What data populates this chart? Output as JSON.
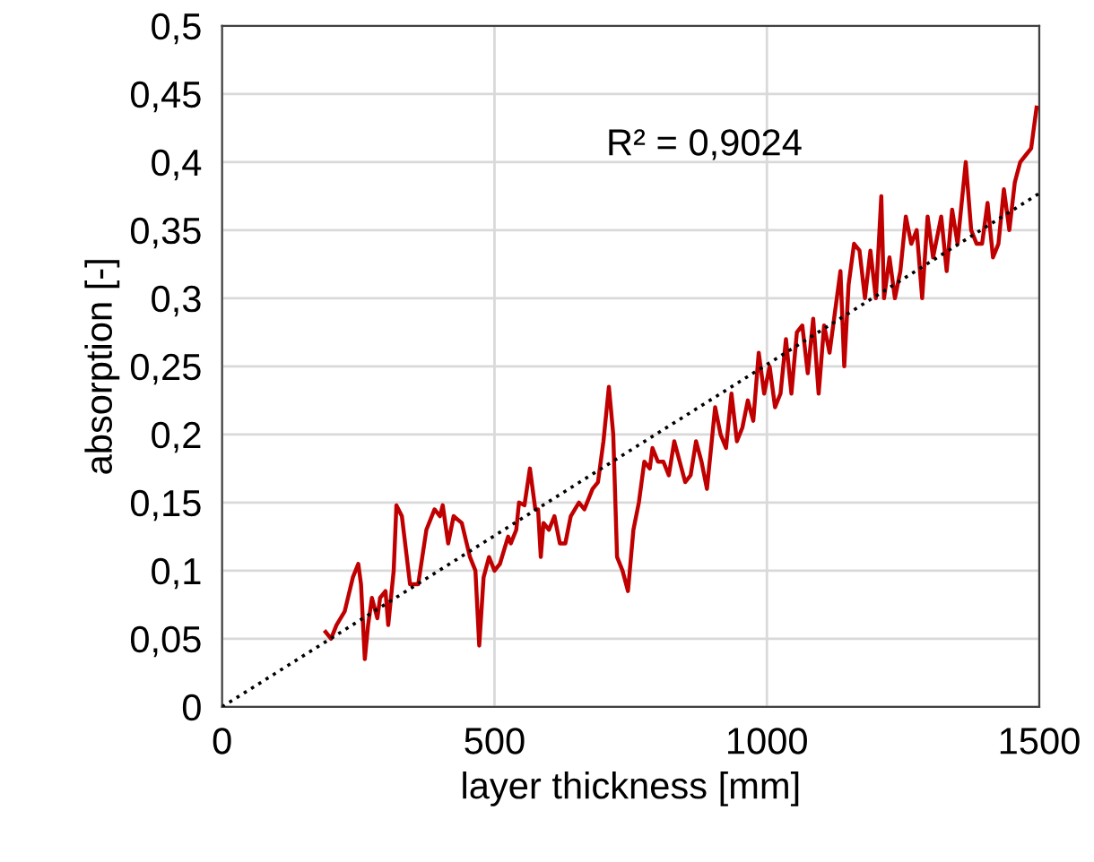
{
  "chart_data": {
    "type": "line",
    "xlabel": "layer thickness [mm]",
    "ylabel": "absorption [-]",
    "xlim": [
      0,
      1500
    ],
    "ylim": [
      0,
      0.5
    ],
    "xticks": [
      0,
      500,
      1000,
      1500
    ],
    "yticks": [
      0,
      {
        "value": 0.05,
        "label": "0,05"
      },
      {
        "value": 0.1,
        "label": "0,1"
      },
      {
        "value": 0.15,
        "label": "0,15"
      },
      {
        "value": 0.2,
        "label": "0,2"
      },
      {
        "value": 0.25,
        "label": "0,25"
      },
      {
        "value": 0.3,
        "label": "0,3"
      },
      {
        "value": 0.35,
        "label": "0,35"
      },
      {
        "value": 0.4,
        "label": "0,4"
      },
      {
        "value": 0.45,
        "label": "0,45"
      },
      {
        "value": 0.5,
        "label": "0,5"
      }
    ],
    "grid": true,
    "legend": false,
    "annotations": [
      "R² = 0,9024"
    ],
    "series": [
      {
        "color": "#c00000",
        "line_style": "solid",
        "x": [
          190,
          200,
          210,
          225,
          240,
          250,
          255,
          262,
          268,
          275,
          285,
          290,
          300,
          305,
          315,
          320,
          330,
          345,
          360,
          375,
          390,
          400,
          405,
          415,
          425,
          440,
          455,
          465,
          472,
          480,
          490,
          500,
          510,
          525,
          530,
          540,
          545,
          555,
          565,
          575,
          580,
          585,
          590,
          600,
          610,
          620,
          630,
          640,
          655,
          665,
          680,
          690,
          700,
          710,
          718,
          725,
          735,
          745,
          755,
          765,
          775,
          785,
          790,
          800,
          810,
          820,
          830,
          840,
          850,
          860,
          870,
          880,
          890,
          905,
          915,
          925,
          935,
          945,
          955,
          965,
          975,
          985,
          995,
          1005,
          1015,
          1025,
          1035,
          1045,
          1055,
          1065,
          1075,
          1085,
          1095,
          1105,
          1115,
          1125,
          1135,
          1142,
          1150,
          1160,
          1170,
          1180,
          1190,
          1200,
          1210,
          1215,
          1225,
          1235,
          1245,
          1255,
          1265,
          1275,
          1285,
          1295,
          1305,
          1320,
          1330,
          1340,
          1350,
          1365,
          1375,
          1385,
          1395,
          1405,
          1415,
          1425,
          1435,
          1445,
          1455,
          1465,
          1475,
          1485,
          1495
        ],
        "values": [
          0.055,
          0.05,
          0.06,
          0.07,
          0.095,
          0.105,
          0.09,
          0.035,
          0.06,
          0.08,
          0.065,
          0.08,
          0.085,
          0.06,
          0.1,
          0.148,
          0.14,
          0.09,
          0.09,
          0.13,
          0.145,
          0.14,
          0.148,
          0.12,
          0.14,
          0.135,
          0.11,
          0.1,
          0.045,
          0.095,
          0.11,
          0.1,
          0.105,
          0.125,
          0.12,
          0.13,
          0.15,
          0.148,
          0.175,
          0.145,
          0.145,
          0.11,
          0.135,
          0.13,
          0.14,
          0.12,
          0.12,
          0.14,
          0.15,
          0.145,
          0.16,
          0.165,
          0.195,
          0.235,
          0.2,
          0.11,
          0.1,
          0.085,
          0.13,
          0.15,
          0.18,
          0.175,
          0.19,
          0.18,
          0.18,
          0.17,
          0.195,
          0.18,
          0.165,
          0.17,
          0.195,
          0.18,
          0.16,
          0.22,
          0.2,
          0.19,
          0.23,
          0.195,
          0.205,
          0.225,
          0.21,
          0.26,
          0.23,
          0.25,
          0.22,
          0.23,
          0.27,
          0.23,
          0.275,
          0.28,
          0.245,
          0.285,
          0.23,
          0.28,
          0.26,
          0.29,
          0.32,
          0.25,
          0.31,
          0.34,
          0.335,
          0.3,
          0.335,
          0.3,
          0.375,
          0.3,
          0.33,
          0.3,
          0.32,
          0.36,
          0.34,
          0.35,
          0.3,
          0.36,
          0.33,
          0.36,
          0.32,
          0.365,
          0.34,
          0.4,
          0.35,
          0.34,
          0.34,
          0.37,
          0.33,
          0.34,
          0.38,
          0.35,
          0.385,
          0.4,
          0.405,
          0.41,
          0.44
        ]
      },
      {
        "color": "#000000",
        "line_style": "dotted",
        "x": [
          0,
          1500
        ],
        "values": [
          0,
          0.377
        ]
      }
    ]
  }
}
